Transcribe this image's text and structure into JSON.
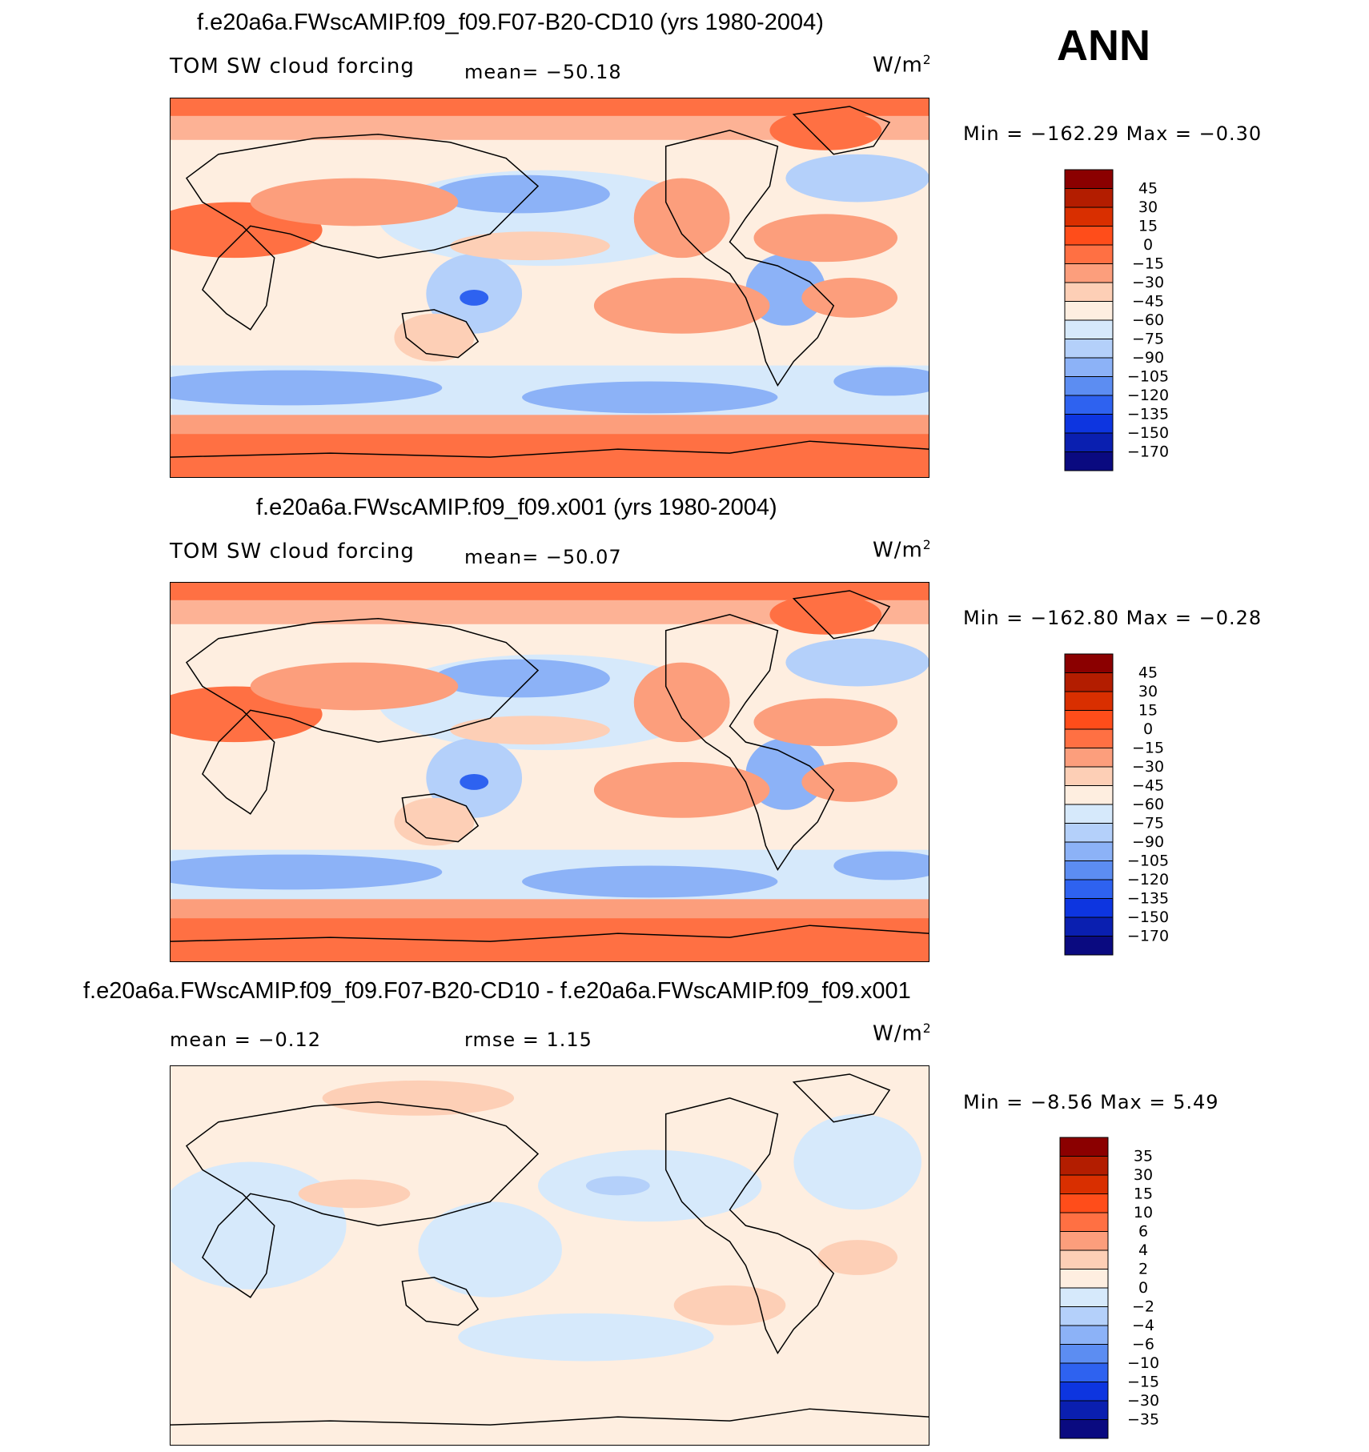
{
  "header": {
    "season": "ANN"
  },
  "panels": [
    {
      "id": "p1",
      "title": "f.e20a6a.FWscAMIP.f09_f09.F07-B20-CD10 (yrs 1980-2004)",
      "left_label": "TOM  SW  cloud  forcing",
      "mean_text": "mean=  −50.18",
      "units_base": "W/m",
      "units_exp": "2",
      "minmax": "Min  =  −162.29  Max  =    −0.30",
      "colorbar": "main"
    },
    {
      "id": "p2",
      "title": "f.e20a6a.FWscAMIP.f09_f09.x001 (yrs 1980-2004)",
      "left_label": "TOM  SW  cloud  forcing",
      "mean_text": "mean=  −50.07",
      "units_base": "W/m",
      "units_exp": "2",
      "minmax": "Min  =  −162.80  Max  =    −0.28",
      "colorbar": "main"
    },
    {
      "id": "p3",
      "title": "f.e20a6a.FWscAMIP.f09_f09.F07-B20-CD10 - f.e20a6a.FWscAMIP.f09_f09.x001",
      "left_label": "mean  =    −0.12",
      "mean_text": "rmse  =      1.15",
      "units_base": "W/m",
      "units_exp": "2",
      "minmax": "Min  =     −8.56  Max  =      5.49",
      "colorbar": "diff"
    }
  ],
  "colorbars": {
    "main": {
      "levels": [
        "45",
        "30",
        "15",
        "0",
        "−15",
        "−30",
        "−45",
        "−60",
        "−75",
        "−90",
        "−105",
        "−120",
        "−135",
        "−150",
        "−170"
      ],
      "colors": [
        "#8b0000",
        "#b31d00",
        "#d92f00",
        "#ff4d1a",
        "#ff7043",
        "#fc9e7c",
        "#fdcfb6",
        "#feeee0",
        "#d6e9fb",
        "#b4d0fa",
        "#8cb2f7",
        "#5c8df2",
        "#2e62f0",
        "#0d35e0",
        "#0a1fb0",
        "#0a0a80"
      ]
    },
    "diff": {
      "levels": [
        "35",
        "30",
        "15",
        "10",
        "6",
        "4",
        "2",
        "0",
        "−2",
        "−4",
        "−6",
        "−10",
        "−15",
        "−30",
        "−35"
      ],
      "colors": [
        "#8b0000",
        "#b31d00",
        "#d92f00",
        "#ff4d1a",
        "#ff7043",
        "#fc9e7c",
        "#fdcfb6",
        "#feeee0",
        "#d6e9fb",
        "#b4d0fa",
        "#8cb2f7",
        "#5c8df2",
        "#2e62f0",
        "#0d35e0",
        "#0a1fb0",
        "#0a0a80"
      ]
    }
  },
  "chart_data": [
    {
      "type": "heatmap",
      "title": "f.e20a6a.FWscAMIP.f09_f09.F07-B20-CD10 (yrs 1980-2004)",
      "variable": "TOM SW cloud forcing",
      "units": "W/m2",
      "mean": -50.18,
      "min": -162.29,
      "max": -0.3,
      "color_levels": [
        45,
        30,
        15,
        0,
        -15,
        -30,
        -45,
        -60,
        -75,
        -90,
        -105,
        -120,
        -135,
        -150,
        -170
      ]
    },
    {
      "type": "heatmap",
      "title": "f.e20a6a.FWscAMIP.f09_f09.x001 (yrs 1980-2004)",
      "variable": "TOM SW cloud forcing",
      "units": "W/m2",
      "mean": -50.07,
      "min": -162.8,
      "max": -0.28,
      "color_levels": [
        45,
        30,
        15,
        0,
        -15,
        -30,
        -45,
        -60,
        -75,
        -90,
        -105,
        -120,
        -135,
        -150,
        -170
      ]
    },
    {
      "type": "heatmap",
      "title": "f.e20a6a.FWscAMIP.f09_f09.F07-B20-CD10 - f.e20a6a.FWscAMIP.f09_f09.x001",
      "units": "W/m2",
      "mean": -0.12,
      "rmse": 1.15,
      "min": -8.56,
      "max": 5.49,
      "color_levels": [
        35,
        30,
        15,
        10,
        6,
        4,
        2,
        0,
        -2,
        -4,
        -6,
        -10,
        -15,
        -30,
        -35
      ]
    }
  ]
}
